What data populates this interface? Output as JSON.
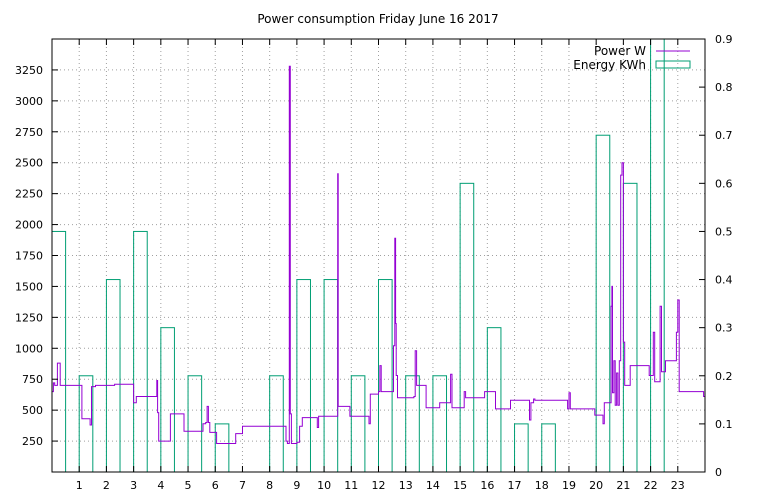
{
  "chart_data": {
    "type": "line",
    "title": "Power consumption Friday June 16 2017",
    "xlabel": "",
    "ylabel": "",
    "x_ticks": [
      "1",
      "2",
      "3",
      "4",
      "5",
      "6",
      "7",
      "8",
      "9",
      "10",
      "11",
      "12",
      "13",
      "14",
      "15",
      "16",
      "17",
      "18",
      "19",
      "20",
      "21",
      "22",
      "23"
    ],
    "xlim": [
      0,
      24
    ],
    "y_left_ticks": [
      "250",
      "500",
      "750",
      "1000",
      "1250",
      "1500",
      "1750",
      "2000",
      "2250",
      "2500",
      "2750",
      "3000",
      "3250"
    ],
    "ylim_left": [
      0,
      3500
    ],
    "y_right_ticks": [
      "0",
      "0.1",
      "0.2",
      "0.3",
      "0.4",
      "0.5",
      "0.6",
      "0.7",
      "0.8",
      "0.9"
    ],
    "ylim_right": [
      0,
      0.9
    ],
    "grid": true,
    "legend_position": "top-right",
    "series": [
      {
        "name": "Power W",
        "axis": "left",
        "color": "#9400d3",
        "points": [
          [
            0.0,
            650
          ],
          [
            0.05,
            720
          ],
          [
            0.1,
            700
          ],
          [
            0.2,
            880
          ],
          [
            0.3,
            700
          ],
          [
            0.5,
            700
          ],
          [
            0.9,
            700
          ],
          [
            0.95,
            700
          ],
          [
            1.1,
            430
          ],
          [
            1.35,
            430
          ],
          [
            1.4,
            380
          ],
          [
            1.45,
            690
          ],
          [
            1.6,
            700
          ],
          [
            1.95,
            700
          ],
          [
            2.3,
            710
          ],
          [
            2.9,
            710
          ],
          [
            3.0,
            560
          ],
          [
            3.1,
            610
          ],
          [
            3.8,
            610
          ],
          [
            3.85,
            740
          ],
          [
            3.88,
            480
          ],
          [
            3.92,
            250
          ],
          [
            4.0,
            250
          ],
          [
            4.3,
            250
          ],
          [
            4.35,
            470
          ],
          [
            4.8,
            470
          ],
          [
            4.85,
            330
          ],
          [
            5.5,
            330
          ],
          [
            5.55,
            390
          ],
          [
            5.65,
            400
          ],
          [
            5.7,
            530
          ],
          [
            5.75,
            400
          ],
          [
            5.8,
            320
          ],
          [
            6.0,
            320
          ],
          [
            6.05,
            230
          ],
          [
            6.7,
            230
          ],
          [
            6.75,
            310
          ],
          [
            6.95,
            310
          ],
          [
            7.0,
            370
          ],
          [
            7.4,
            370
          ],
          [
            8.0,
            370
          ],
          [
            8.5,
            370
          ],
          [
            8.6,
            250
          ],
          [
            8.65,
            230
          ],
          [
            8.72,
            3280
          ],
          [
            8.76,
            470
          ],
          [
            8.8,
            230
          ],
          [
            9.0,
            240
          ],
          [
            9.1,
            370
          ],
          [
            9.2,
            440
          ],
          [
            9.7,
            440
          ],
          [
            9.75,
            360
          ],
          [
            9.8,
            450
          ],
          [
            10.45,
            450
          ],
          [
            10.5,
            2410
          ],
          [
            10.52,
            530
          ],
          [
            10.9,
            530
          ],
          [
            10.95,
            450
          ],
          [
            11.6,
            450
          ],
          [
            11.65,
            390
          ],
          [
            11.7,
            630
          ],
          [
            11.9,
            630
          ],
          [
            12.0,
            650
          ],
          [
            12.05,
            860
          ],
          [
            12.1,
            650
          ],
          [
            12.5,
            650
          ],
          [
            12.55,
            1020
          ],
          [
            12.6,
            1890
          ],
          [
            12.63,
            1200
          ],
          [
            12.65,
            780
          ],
          [
            12.7,
            600
          ],
          [
            13.25,
            600
          ],
          [
            13.3,
            610
          ],
          [
            13.35,
            980
          ],
          [
            13.4,
            700
          ],
          [
            13.7,
            700
          ],
          [
            13.75,
            520
          ],
          [
            14.2,
            520
          ],
          [
            14.25,
            560
          ],
          [
            14.6,
            560
          ],
          [
            14.65,
            790
          ],
          [
            14.7,
            520
          ],
          [
            15.1,
            520
          ],
          [
            15.15,
            650
          ],
          [
            15.2,
            600
          ],
          [
            15.8,
            600
          ],
          [
            15.9,
            650
          ],
          [
            16.2,
            650
          ],
          [
            16.3,
            510
          ],
          [
            16.8,
            510
          ],
          [
            16.85,
            580
          ],
          [
            17.5,
            580
          ],
          [
            17.55,
            420
          ],
          [
            17.6,
            560
          ],
          [
            17.7,
            590
          ],
          [
            17.75,
            580
          ],
          [
            18.9,
            580
          ],
          [
            18.95,
            510
          ],
          [
            19.0,
            640
          ],
          [
            19.05,
            510
          ],
          [
            19.9,
            510
          ],
          [
            19.95,
            460
          ],
          [
            20.2,
            460
          ],
          [
            20.25,
            390
          ],
          [
            20.3,
            560
          ],
          [
            20.5,
            560
          ],
          [
            20.55,
            1340
          ],
          [
            20.58,
            1500
          ],
          [
            20.6,
            640
          ],
          [
            20.65,
            900
          ],
          [
            20.7,
            540
          ],
          [
            20.75,
            800
          ],
          [
            20.8,
            540
          ],
          [
            20.85,
            900
          ],
          [
            20.9,
            2400
          ],
          [
            20.95,
            2500
          ],
          [
            21.0,
            1050
          ],
          [
            21.05,
            700
          ],
          [
            21.2,
            700
          ],
          [
            21.25,
            860
          ],
          [
            21.9,
            860
          ],
          [
            21.95,
            780
          ],
          [
            22.05,
            780
          ],
          [
            22.1,
            1130
          ],
          [
            22.15,
            730
          ],
          [
            22.3,
            730
          ],
          [
            22.35,
            1340
          ],
          [
            22.4,
            810
          ],
          [
            22.5,
            810
          ],
          [
            22.55,
            900
          ],
          [
            22.9,
            900
          ],
          [
            22.95,
            1130
          ],
          [
            23.0,
            1390
          ],
          [
            23.05,
            650
          ],
          [
            23.9,
            650
          ],
          [
            23.95,
            610
          ],
          [
            24.0,
            610
          ]
        ]
      },
      {
        "name": "Energy KWh",
        "axis": "right",
        "color": "#009e73",
        "style": "impulse-box",
        "bars": [
          [
            0.0,
            0.5
          ],
          [
            1.0,
            0.2
          ],
          [
            2.0,
            0.4
          ],
          [
            3.0,
            0.5
          ],
          [
            4.0,
            0.3
          ],
          [
            5.0,
            0.2
          ],
          [
            6.0,
            0.1
          ],
          [
            7.0,
            0.0
          ],
          [
            8.0,
            0.2
          ],
          [
            9.0,
            0.4
          ],
          [
            10.0,
            0.4
          ],
          [
            11.0,
            0.2
          ],
          [
            12.0,
            0.4
          ],
          [
            13.0,
            0.2
          ],
          [
            14.0,
            0.2
          ],
          [
            15.0,
            0.6
          ],
          [
            16.0,
            0.3
          ],
          [
            17.0,
            0.1
          ],
          [
            18.0,
            0.1
          ],
          [
            19.0,
            0.0
          ],
          [
            20.0,
            0.7
          ],
          [
            21.0,
            0.6
          ],
          [
            22.0,
            0.9
          ],
          [
            23.0,
            0.0
          ]
        ]
      }
    ]
  }
}
